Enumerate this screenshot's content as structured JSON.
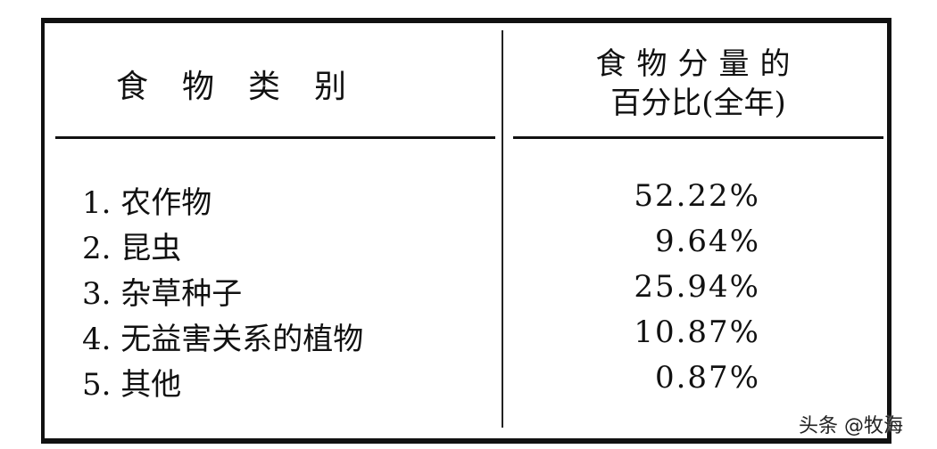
{
  "table": {
    "headers": [
      "食物类别",
      "食物分量的百分比(全年)"
    ],
    "header_col1_chars": [
      "食",
      "物",
      "类",
      "别"
    ],
    "header_col2_line1": "食物分量的",
    "header_col2_line2": "百分比(全年)",
    "rows": [
      {
        "index": "1.",
        "category": "农作物",
        "percent": "52.22%"
      },
      {
        "index": "2.",
        "category": "昆虫",
        "percent": "9.64%"
      },
      {
        "index": "3.",
        "category": "杂草种子",
        "percent": "25.94%"
      },
      {
        "index": "4.",
        "category": "无益害关系的植物",
        "percent": "10.87%"
      },
      {
        "index": "5.",
        "category": "其他",
        "percent": "0.87%"
      }
    ]
  },
  "watermark": "头条 @牧海"
}
